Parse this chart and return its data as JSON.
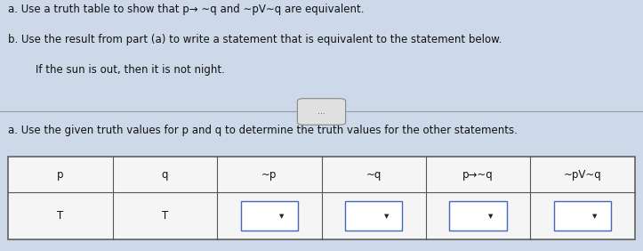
{
  "bg_color": "#cdd9e8",
  "text_color": "#111111",
  "line1": "a. Use a truth table to show that p→ ∼q and ∼pV∼q are equivalent.",
  "line2": "b. Use the result from part (a) to write a statement that is equivalent to the statement below.",
  "line3": "If the sun is out, then it is not night.",
  "dots": "...",
  "line4": "a. Use the given truth values for p and q to determine the truth values for the other statements.",
  "col_headers": [
    "p",
    "q",
    "~p",
    "~q",
    "p→~q",
    "~pV~q"
  ],
  "row_data": [
    [
      "T",
      "T",
      "",
      "",
      "",
      ""
    ]
  ],
  "font_size_text": 8.5,
  "font_size_table_header": 8.5,
  "font_size_table_data": 8.5,
  "font_size_dots": 6.5,
  "table_bg": "#f0f0f0",
  "table_border": "#555555",
  "dropdown_border": "#4466bb",
  "dropdown_bg": "#ffffff"
}
